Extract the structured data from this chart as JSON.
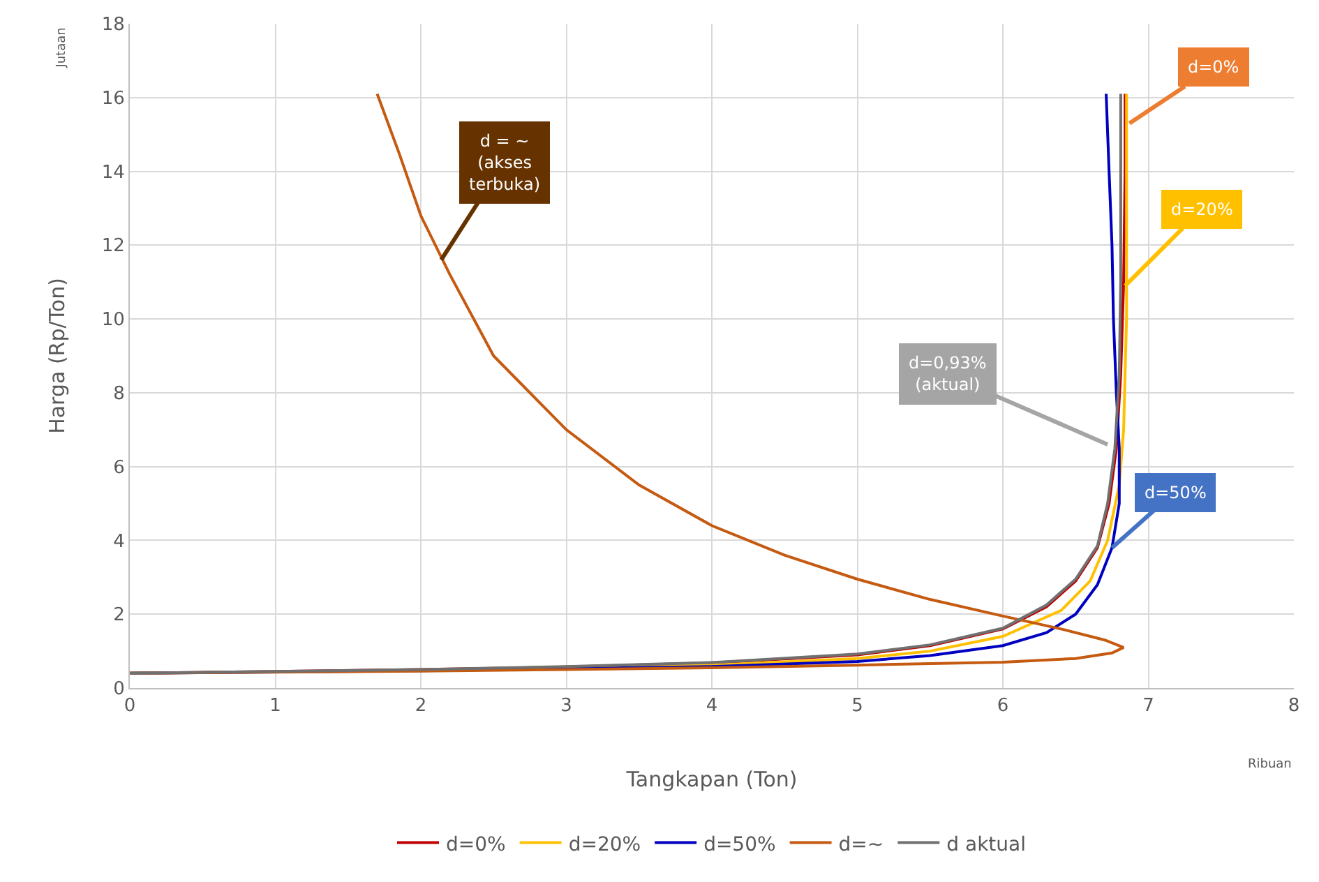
{
  "chart_data": {
    "type": "line",
    "xlabel": "Tangkapan (Ton)",
    "ylabel": "Harga (Rp/Ton)",
    "xlim": [
      0,
      8
    ],
    "xticks": [
      0,
      1,
      2,
      3,
      4,
      5,
      6,
      7,
      8
    ],
    "ylim": [
      0,
      18
    ],
    "yticks": [
      0,
      2,
      4,
      6,
      8,
      10,
      12,
      14,
      16,
      18
    ],
    "grid": true,
    "legend": "bottom",
    "marker": "none",
    "line_style": "solid",
    "series": [
      {
        "name": "d=0%",
        "color": "#c00000",
        "x": [
          0,
          1,
          2,
          3,
          4,
          5,
          5.5,
          6,
          6.3,
          6.5,
          6.65,
          6.73,
          6.78,
          6.81,
          6.83,
          6.84,
          6.84
        ],
        "values": [
          0.4,
          0.45,
          0.5,
          0.57,
          0.68,
          0.9,
          1.15,
          1.6,
          2.2,
          2.9,
          3.8,
          5,
          6.5,
          8.5,
          11,
          14,
          16.1
        ]
      },
      {
        "name": "d=20%",
        "color": "#ffc000",
        "x": [
          0,
          2,
          4,
          5,
          5.5,
          6,
          6.4,
          6.6,
          6.72,
          6.8,
          6.83,
          6.85,
          6.85,
          6.85
        ],
        "values": [
          0.4,
          0.48,
          0.62,
          0.8,
          1.0,
          1.4,
          2.1,
          2.9,
          4,
          5.5,
          7,
          10,
          13,
          16.1
        ]
      },
      {
        "name": "d=50%",
        "color": "#0000c0",
        "x": [
          0,
          2,
          4,
          5,
          5.5,
          6,
          6.3,
          6.5,
          6.65,
          6.75,
          6.8,
          6.8,
          6.78,
          6.76,
          6.75,
          6.73,
          6.71
        ],
        "values": [
          0.4,
          0.47,
          0.58,
          0.72,
          0.88,
          1.15,
          1.5,
          2.0,
          2.8,
          3.8,
          5,
          6.5,
          8,
          10,
          12,
          14,
          16.1
        ]
      },
      {
        "name": "d=~",
        "color": "#c55a11",
        "x": [
          0,
          1,
          2,
          3,
          4,
          5,
          6,
          6.5,
          6.75,
          6.83,
          6.7,
          6.4,
          6,
          5.5,
          5,
          4.5,
          4,
          3.5,
          3,
          2.5,
          2.2,
          2,
          1.85,
          1.7
        ],
        "values": [
          0.4,
          0.43,
          0.46,
          0.5,
          0.55,
          0.62,
          0.7,
          0.8,
          0.95,
          1.1,
          1.3,
          1.6,
          1.95,
          2.4,
          2.95,
          3.6,
          4.4,
          5.5,
          7.0,
          9,
          11.2,
          12.8,
          14.5,
          16.1
        ]
      },
      {
        "name": "d aktual",
        "color": "#707070",
        "x": [
          0,
          1,
          2,
          3,
          4,
          5,
          5.5,
          6,
          6.3,
          6.5,
          6.65,
          6.72,
          6.77,
          6.8,
          6.81,
          6.81,
          6.81
        ],
        "values": [
          0.4,
          0.45,
          0.5,
          0.58,
          0.69,
          0.92,
          1.17,
          1.62,
          2.25,
          2.95,
          3.85,
          5,
          6.5,
          8.5,
          11,
          14,
          16.1
        ]
      }
    ],
    "annotations": [
      {
        "text": "d=0%",
        "x": 6.87,
        "y": 15.3
      },
      {
        "text": "d=20%",
        "x": 6.84,
        "y": 10.9
      },
      {
        "text": "d=0,93%\n(aktual)",
        "x": 6.72,
        "y": 6.6
      },
      {
        "text": "d=50%",
        "x": 6.75,
        "y": 3.8
      },
      {
        "text": "d = ~\n(akses\nterbuka)",
        "x": 2.14,
        "y": 11.6
      },
      "Jutaan",
      "Ribuan"
    ]
  }
}
